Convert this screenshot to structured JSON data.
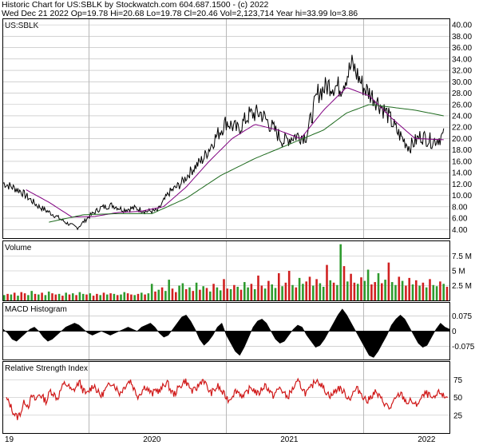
{
  "header": {
    "line1": "Historic Chart for US:SBLK by Stockwatch.com 604.687.1500 - (c) 2022",
    "line2": "Wed Dec 21 2022  Op=19.78  Hi=20.68  Lo=19.78  Cl=20.46  Vol=2,123,714  Year hi=33.99  lo=3.86"
  },
  "panels": {
    "price": "US:SBLK",
    "volume": "Volume",
    "macd": "MACD Histogram",
    "rsi": "Relative Strength Index"
  },
  "colors": {
    "price": "#000000",
    "ma_short": "#800080",
    "ma_long": "#1f6b1f",
    "vol_up": "#2e9b2e",
    "vol_down": "#d02020",
    "rsi": "#d01818",
    "grid": "#b8b8b8"
  },
  "chart_data": [
    {
      "type": "line",
      "name": "price",
      "ylim": [
        2.5,
        41
      ],
      "yticks": [
        "40.00",
        "38.00",
        "36.00",
        "34.00",
        "32.00",
        "30.00",
        "28.00",
        "26.00",
        "24.00",
        "22.00",
        "20.00",
        "18.00",
        "16.00",
        "14.00",
        "12.00",
        "10.00",
        "8.00",
        "6.00",
        "4.00"
      ],
      "x_labels": [
        "19",
        "2020",
        "2021",
        "2022"
      ],
      "series": [
        {
          "role": "close",
          "x": [
            0,
            1.5,
            3,
            4.5,
            5.5,
            6.5,
            7.5,
            8.5,
            9.5,
            10.5,
            11.5,
            12.5,
            13.5,
            14.5,
            15.5,
            16.5,
            17.5,
            18.5,
            19.5,
            20.5,
            21.5,
            22.5,
            23.5,
            24.5,
            25.5,
            26.5,
            27.5,
            28.5,
            29.5,
            30.5,
            31.5,
            32.5,
            33.5,
            34.5,
            35.5,
            36.5,
            37.5,
            38.5
          ],
          "y": [
            12.2,
            10.8,
            8.2,
            6.5,
            5.2,
            4.3,
            6.3,
            7.8,
            8.3,
            7.5,
            7.8,
            7.2,
            7.3,
            10.5,
            12.0,
            14.5,
            16.5,
            20.0,
            23.0,
            21.5,
            24.2,
            24.5,
            22.0,
            19.5,
            20.5,
            20.5,
            28.0,
            29.5,
            29.0,
            33.0,
            29.0,
            27.0,
            24.5,
            21.0,
            18.5,
            20.5,
            19.5,
            20.5
          ]
        },
        {
          "role": "ma_short",
          "x": [
            2,
            4,
            6,
            8,
            10,
            12,
            14,
            16,
            18,
            20,
            22,
            24,
            26,
            28,
            30,
            32,
            34,
            36,
            38.5
          ],
          "y": [
            11.0,
            8.8,
            6.2,
            6.3,
            7.0,
            7.2,
            8.0,
            11.5,
            16.0,
            20.0,
            22.5,
            21.5,
            20.0,
            25.0,
            29.0,
            27.5,
            23.5,
            20.0,
            19.8
          ]
        },
        {
          "role": "ma_long",
          "x": [
            4,
            7,
            10,
            13,
            16,
            19,
            22,
            25,
            28,
            30,
            32,
            34,
            36,
            38.5
          ],
          "y": [
            5.3,
            6.6,
            6.8,
            6.8,
            9.5,
            13.5,
            16.5,
            19.0,
            21.5,
            24.5,
            26.0,
            25.5,
            25.0,
            24.0
          ]
        }
      ]
    },
    {
      "type": "bar",
      "name": "volume",
      "ylim": [
        0,
        10
      ],
      "yticks": [
        "7.5 M",
        "5 M",
        "2.5 M"
      ],
      "values": [
        0.9,
        1.1,
        1.0,
        1.3,
        0.8,
        1.4,
        1.2,
        0.9,
        1.6,
        1.1,
        1.0,
        1.3,
        0.9,
        1.5,
        1.2,
        1.0,
        1.1,
        0.8,
        1.3,
        1.0,
        1.2,
        0.9,
        1.4,
        1.1,
        1.0,
        1.2,
        0.8,
        1.1,
        0.9,
        1.3,
        1.0,
        1.2,
        1.1,
        0.9,
        1.0,
        1.4,
        1.2,
        1.0,
        0.9,
        1.1,
        1.3,
        1.0,
        1.2,
        2.8,
        1.5,
        1.8,
        2.2,
        1.6,
        3.5,
        2.0,
        1.4,
        2.5,
        2.9,
        1.9,
        2.2,
        1.6,
        3.0,
        1.8,
        2.4,
        2.1,
        1.5,
        2.8,
        2.2,
        1.7,
        3.6,
        2.0,
        1.9,
        2.6,
        2.3,
        1.8,
        3.1,
        2.2,
        2.8,
        1.9,
        4.2,
        2.5,
        2.0,
        3.3,
        2.7,
        2.1,
        4.6,
        2.4,
        3.0,
        5.0,
        2.6,
        2.2,
        3.8,
        2.8,
        3.2,
        4.0,
        2.5,
        3.6,
        2.9,
        2.3,
        6.0,
        3.4,
        3.0,
        2.6,
        9.5,
        5.8,
        3.2,
        4.5,
        3.0,
        2.8,
        3.9,
        3.3,
        5.2,
        2.7,
        3.1,
        4.6,
        2.9,
        3.5,
        6.4,
        3.1,
        2.6,
        4.0,
        3.3,
        2.5,
        3.8,
        2.7,
        3.4,
        2.5,
        3.0,
        2.2,
        3.6,
        2.6,
        2.4,
        3.2,
        2.8,
        2.3
      ],
      "up": [
        1,
        0,
        1,
        0,
        1,
        0,
        0,
        1,
        1,
        0,
        1,
        0,
        1,
        1,
        0,
        0,
        1,
        0,
        1,
        0,
        1,
        0,
        1,
        1,
        0,
        1,
        0,
        0,
        1,
        0,
        1,
        0,
        1,
        0,
        1,
        1,
        0,
        0,
        1,
        0,
        1,
        0,
        1,
        1,
        0,
        1,
        0,
        1,
        1,
        0,
        0,
        1,
        1,
        0,
        1,
        0,
        1,
        0,
        1,
        0,
        1,
        0,
        1,
        1,
        0,
        0,
        1,
        0,
        1,
        0,
        1,
        1,
        0,
        1,
        0,
        0,
        1,
        0,
        1,
        1,
        0,
        1,
        0,
        0,
        1,
        0,
        1,
        1,
        0,
        0,
        1,
        0,
        1,
        1,
        0,
        1,
        0,
        1,
        1,
        0,
        1,
        0,
        0,
        1,
        0,
        1,
        1,
        0,
        0,
        1,
        0,
        1,
        0,
        1,
        1,
        0,
        1,
        0,
        0,
        1,
        0,
        1,
        0,
        1,
        0,
        1,
        1,
        0,
        1,
        0,
        1,
        0,
        1,
        1
      ]
    },
    {
      "type": "bar",
      "name": "macd_histogram",
      "ylim": [
        -0.14,
        0.14
      ],
      "yticks": [
        "0.075",
        "0",
        "-0.075"
      ],
      "x": [
        0,
        2,
        4,
        6,
        8,
        10,
        12,
        14,
        16,
        18,
        20,
        22,
        24,
        26,
        28,
        30,
        32,
        34,
        36,
        38,
        40,
        42,
        44,
        46,
        48,
        50,
        52,
        54,
        56,
        58,
        60,
        62,
        64,
        66,
        68,
        70,
        72,
        74,
        76,
        78,
        80,
        82,
        84,
        86,
        88,
        90,
        92,
        94,
        96,
        98,
        100,
        102,
        104,
        106,
        108,
        110,
        112,
        114,
        116,
        118,
        120,
        122,
        124,
        126,
        128,
        130,
        132,
        134,
        136,
        138,
        140,
        142,
        144,
        146,
        148,
        150,
        152,
        154,
        156,
        158,
        160,
        162,
        164,
        166,
        168,
        170,
        172,
        174,
        176,
        178,
        180,
        182,
        184,
        186,
        188,
        190,
        192,
        194,
        196,
        198,
        200
      ],
      "values": [
        0.01,
        -0.01,
        -0.04,
        -0.05,
        -0.03,
        -0.01,
        0.01,
        0.02,
        0.0,
        -0.03,
        -0.05,
        -0.04,
        -0.02,
        0.0,
        0.02,
        0.03,
        0.04,
        0.03,
        0.01,
        -0.01,
        -0.02,
        -0.01,
        0.0,
        -0.01,
        -0.02,
        -0.01,
        0.0,
        0.01,
        0.02,
        0.01,
        0.0,
        0.02,
        0.03,
        0.04,
        0.02,
        -0.01,
        -0.03,
        -0.02,
        0.01,
        0.04,
        0.07,
        0.08,
        0.05,
        0.01,
        -0.04,
        -0.07,
        -0.05,
        -0.02,
        0.02,
        0.04,
        -0.02,
        -0.06,
        -0.1,
        -0.12,
        -0.08,
        -0.03,
        0.02,
        0.05,
        0.06,
        0.04,
        0.0,
        -0.04,
        -0.06,
        -0.05,
        -0.02,
        0.01,
        0.03,
        0.02,
        -0.02,
        -0.05,
        -0.08,
        -0.07,
        -0.04,
        0.0,
        0.04,
        0.08,
        0.11,
        0.08,
        0.04,
        0.0,
        -0.04,
        -0.08,
        -0.12,
        -0.13,
        -0.1,
        -0.06,
        -0.02,
        0.03,
        0.06,
        0.08,
        0.06,
        0.02,
        -0.02,
        -0.06,
        -0.08,
        -0.07,
        -0.03,
        0.01,
        0.04,
        0.02,
        0.01
      ]
    },
    {
      "type": "line",
      "name": "rsi",
      "ylim": [
        0,
        100
      ],
      "yticks": [
        "75",
        "50",
        "25"
      ],
      "values": [
        48,
        40,
        28,
        22,
        30,
        45,
        38,
        52,
        46,
        55,
        50,
        44,
        60,
        55,
        48,
        62,
        70,
        66,
        58,
        64,
        72,
        60,
        54,
        62,
        68,
        58,
        52,
        60,
        66,
        72,
        64,
        56,
        62,
        70,
        74,
        62,
        52,
        58,
        66,
        60,
        54,
        62,
        58,
        66,
        72,
        60,
        54,
        62,
        68,
        74,
        66,
        58,
        62,
        70,
        76,
        64,
        56,
        60,
        66,
        58,
        52,
        46,
        54,
        60,
        56,
        50,
        58,
        64,
        60,
        54,
        62,
        68,
        60,
        52,
        58,
        64,
        56,
        50,
        58,
        66,
        72,
        64,
        56,
        60,
        68,
        76,
        70,
        62,
        56,
        52,
        58,
        64,
        60,
        54,
        48,
        56,
        62,
        58,
        50,
        44,
        52,
        58,
        52,
        46,
        40,
        34,
        42,
        50,
        56,
        48,
        42,
        46,
        38,
        44,
        50,
        56,
        52,
        46,
        54,
        58,
        50,
        52
      ]
    }
  ]
}
